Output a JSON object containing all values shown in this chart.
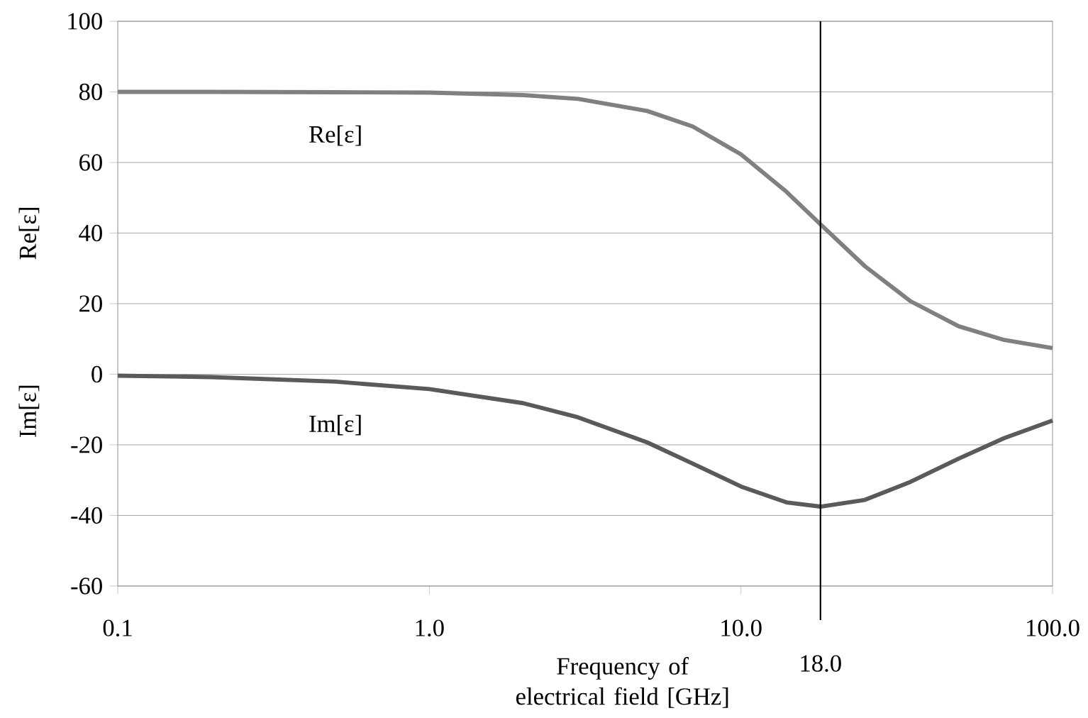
{
  "chart_data": {
    "type": "line",
    "xlabel": "Frequency of electrical field [GHz]",
    "ylabel": "Re[ε]",
    "annotations": [
      "Im[ε]"
    ],
    "log": "x",
    "grid": "y",
    "marker": "none",
    "line_style": "solid",
    "xlim": [
      0.1,
      100
    ],
    "ylim": [
      -60,
      100
    ],
    "xticks": [
      {
        "value": 0.1,
        "label": "0.1"
      },
      {
        "value": 1,
        "label": "1.0"
      },
      {
        "value": 10,
        "label": "10.0"
      },
      {
        "value": 100,
        "label": "100.0"
      }
    ],
    "yticks": [
      -60,
      -40,
      -20,
      0,
      20,
      40,
      60,
      80,
      100
    ],
    "x": [
      0.1,
      0.2,
      0.5,
      1,
      2,
      3,
      5,
      7,
      10,
      14,
      18,
      25,
      35,
      50,
      70,
      100
    ],
    "series": [
      {
        "name": "Re[ε]",
        "color": "#808080",
        "values": [
          80.0,
          80.0,
          79.9,
          79.8,
          79.1,
          78.0,
          74.6,
          70.2,
          62.3,
          51.7,
          42.5,
          30.6,
          20.7,
          13.6,
          9.7,
          7.4
        ]
      },
      {
        "name": "Im[ε]",
        "color": "#5a5a5a",
        "values": [
          -0.4,
          -0.8,
          -2.1,
          -4.2,
          -8.2,
          -12.2,
          -19.3,
          -25.3,
          -31.8,
          -36.3,
          -37.5,
          -35.6,
          -30.5,
          -23.9,
          -18.1,
          -13.1
        ]
      }
    ],
    "ref_lines": [
      {
        "axis": "x",
        "value": 18,
        "label": "18.0",
        "color": "#000000"
      }
    ]
  }
}
